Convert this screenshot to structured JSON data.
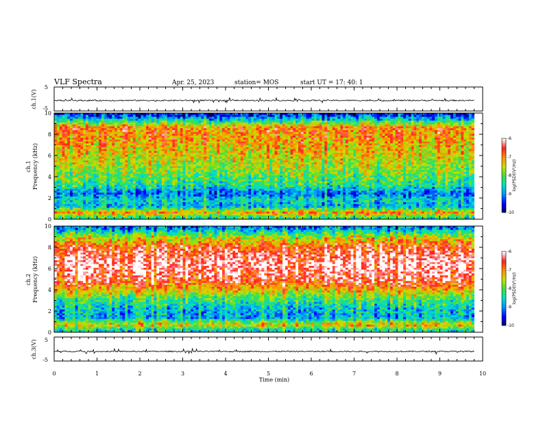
{
  "header": {
    "title": "VLF Spectra",
    "date": "Apr. 25, 2023",
    "station": "station= MOS",
    "start": "start  UT  =    17: 40: 1"
  },
  "chart_data": [
    {
      "type": "line",
      "name": "ch1-waveform",
      "ylabel": "ch.1(V)",
      "ylim": [
        -5,
        5
      ],
      "yticks": [
        "5",
        "-5"
      ],
      "xlim": [
        0,
        10
      ],
      "level": -0.6
    },
    {
      "type": "heatmap",
      "name": "ch1-spectrogram",
      "ylabel": "ch.1\nFrequency (kHz)",
      "ylabel_lines": [
        "ch.1",
        "Frequency (kHz)"
      ],
      "xlim": [
        0,
        10
      ],
      "ylim": [
        0,
        10
      ],
      "yticks": [
        "0",
        "2",
        "4",
        "6",
        "8",
        "10"
      ],
      "data_x_end": 9.8,
      "colorbar": {
        "label": "log(PSD)(V²/Hz)",
        "ticks": [
          "-6",
          "-7",
          "-8",
          "-9",
          "-10"
        ],
        "range": [
          -10,
          -6
        ]
      },
      "profile": [
        {
          "f": 0.2,
          "v": -8.2
        },
        {
          "f": 0.6,
          "v": -7.0
        },
        {
          "f": 1.2,
          "v": -8.8
        },
        {
          "f": 1.8,
          "v": -8.5
        },
        {
          "f": 2.4,
          "v": -9.1
        },
        {
          "f": 3.2,
          "v": -8.3
        },
        {
          "f": 4.5,
          "v": -7.8
        },
        {
          "f": 6.0,
          "v": -7.4
        },
        {
          "f": 7.5,
          "v": -7.1
        },
        {
          "f": 8.6,
          "v": -6.9
        },
        {
          "f": 9.2,
          "v": -8.2
        },
        {
          "f": 9.8,
          "v": -9.4
        }
      ]
    },
    {
      "type": "heatmap",
      "name": "ch2-spectrogram",
      "ylabel": "ch.2\nFrequency (kHz)",
      "ylabel_lines": [
        "ch.2",
        "Frequency (kHz)"
      ],
      "xlim": [
        0,
        10
      ],
      "ylim": [
        0,
        10
      ],
      "yticks": [
        "0",
        "2",
        "4",
        "6",
        "8",
        "10"
      ],
      "data_x_end": 9.8,
      "colorbar": {
        "label": "log(PSD)(V²/Hz)",
        "ticks": [
          "-6",
          "-7",
          "-8",
          "-9",
          "-10"
        ],
        "range": [
          -10,
          -6
        ]
      },
      "profile": [
        {
          "f": 0.2,
          "v": -8.5
        },
        {
          "f": 0.7,
          "v": -7.2
        },
        {
          "f": 1.4,
          "v": -8.8
        },
        {
          "f": 2.2,
          "v": -8.6
        },
        {
          "f": 3.2,
          "v": -8.0
        },
        {
          "f": 4.2,
          "v": -7.0
        },
        {
          "f": 5.0,
          "v": -6.4
        },
        {
          "f": 6.5,
          "v": -6.1
        },
        {
          "f": 8.0,
          "v": -6.6
        },
        {
          "f": 9.0,
          "v": -7.6
        },
        {
          "f": 9.8,
          "v": -9.0
        }
      ]
    },
    {
      "type": "line",
      "name": "ch3-waveform",
      "ylabel": "ch.3(V)",
      "ylim": [
        -5,
        5
      ],
      "yticks": [
        "5",
        "-5"
      ],
      "xlim": [
        0,
        10
      ],
      "level": -1.0,
      "xlabel": "Time  (min)",
      "xticks": [
        "0",
        "1",
        "2",
        "3",
        "4",
        "5",
        "6",
        "7",
        "8",
        "9",
        "10"
      ]
    }
  ],
  "colors": {
    "colormap": [
      "#00005a",
      "#0000ff",
      "#0090ff",
      "#00e0c8",
      "#40e040",
      "#c8e000",
      "#ff9000",
      "#ff2020",
      "#ffffff"
    ]
  }
}
